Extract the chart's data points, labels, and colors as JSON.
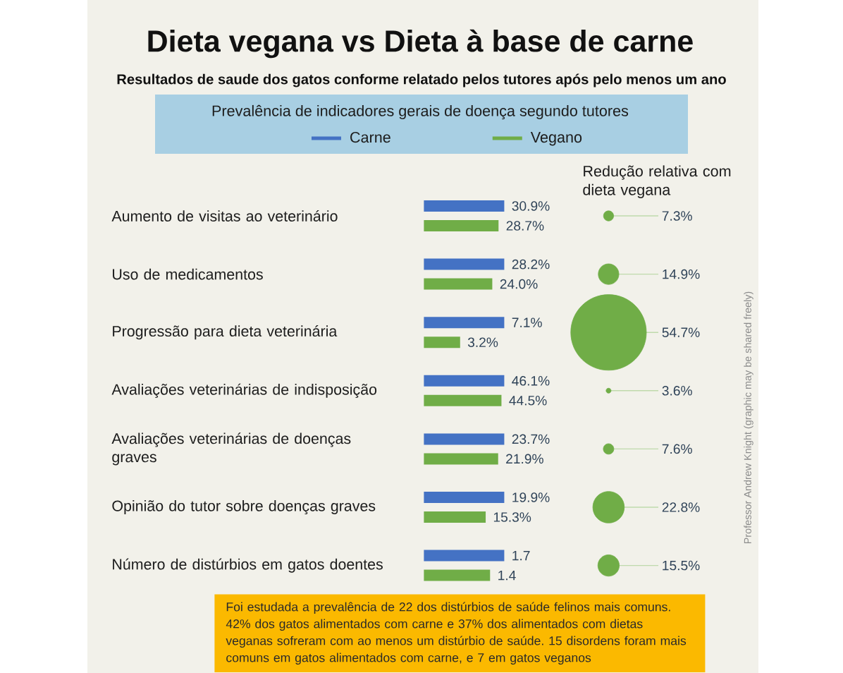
{
  "chart_data": [
    {
      "type": "bar",
      "orientation": "horizontal",
      "title": "Dieta vegana vs Dieta à base de carne",
      "subtitle": "Resultados de saude dos gatos conforme relatado pelos tutores após pelo menos um ano",
      "legend_title": "Prevalência de indicadores gerais de doença segundo tutores",
      "legend": "top",
      "categories": [
        "Aumento de visitas ao veterinário"
      ],
      "series": [
        {
          "name": "Carne",
          "color": "#4472c4",
          "values": [
            30.9
          ],
          "value_labels": [
            "30.9%"
          ]
        },
        {
          "name": "Vegano",
          "color": "#70ad47",
          "values": [
            28.7
          ],
          "value_labels": [
            "28.7%"
          ]
        }
      ]
    },
    {
      "type": "bar",
      "orientation": "horizontal",
      "categories": [
        "Uso de medicamentos"
      ],
      "series": [
        {
          "color": "#4472c4",
          "values": [
            28.2
          ],
          "value_labels": [
            "28.2%"
          ]
        },
        {
          "color": "#70ad47",
          "values": [
            24.0
          ],
          "value_labels": [
            "24.0%"
          ]
        }
      ]
    },
    {
      "type": "bar",
      "orientation": "horizontal",
      "categories": [
        "Progressão para dieta veterinária"
      ],
      "series": [
        {
          "color": "#4472c4",
          "values": [
            7.1
          ],
          "value_labels": [
            "7.1%"
          ]
        },
        {
          "color": "#70ad47",
          "values": [
            3.2
          ],
          "value_labels": [
            "3.2%"
          ]
        }
      ]
    },
    {
      "type": "bar",
      "orientation": "horizontal",
      "categories": [
        "Avaliações veterinárias de indisposição"
      ],
      "series": [
        {
          "color": "#4472c4",
          "values": [
            46.1
          ],
          "value_labels": [
            "46.1%"
          ]
        },
        {
          "color": "#70ad47",
          "values": [
            44.5
          ],
          "value_labels": [
            "44.5%"
          ]
        }
      ]
    },
    {
      "type": "bar",
      "orientation": "horizontal",
      "categories": [
        "Avaliações veterinárias de doenças graves"
      ],
      "series": [
        {
          "color": "#4472c4",
          "values": [
            23.7
          ],
          "value_labels": [
            "23.7%"
          ]
        },
        {
          "color": "#70ad47",
          "values": [
            21.9
          ],
          "value_labels": [
            "21.9%"
          ]
        }
      ]
    },
    {
      "type": "bar",
      "orientation": "horizontal",
      "categories": [
        "Opinião do tutor sobre doenças graves"
      ],
      "series": [
        {
          "color": "#4472c4",
          "values": [
            19.9
          ],
          "value_labels": [
            "19.9%"
          ]
        },
        {
          "color": "#70ad47",
          "values": [
            15.3
          ],
          "value_labels": [
            "15.3%"
          ]
        }
      ]
    },
    {
      "type": "bar",
      "orientation": "horizontal",
      "categories": [
        "Número de distúrbios em gatos doentes"
      ],
      "data_labels": true,
      "series": [
        {
          "color": "#4472c4",
          "values": [
            1.7
          ]
        },
        {
          "color": "#70ad47",
          "values": [
            1.4
          ]
        }
      ],
      "annotations": [
        "Foi estudada a prevalência de 22 dos distúrbios de saúde felinos mais comuns. 42% dos gatos alimentados com carne e 37% dos alimentados com dietas veganas sofreram com ao menos um distúrbio de saúde. 15 disordens foram mais comuns em gatos alimentados com carne, e 7 em gatos veganos",
        "Professor Andrew Knight (graphic may be shared freely)"
      ]
    },
    {
      "type": "other",
      "title": "Redução relativa com dieta vegana",
      "categories": [
        null,
        null,
        null,
        null,
        null,
        null,
        null
      ],
      "values": [
        7.3,
        14.9,
        54.7,
        3.6,
        7.6,
        22.8,
        15.5
      ],
      "value_labels": [
        "7.3%",
        "14.9%",
        "54.7%",
        "3.6%",
        "7.6%",
        "22.8%",
        "15.5%"
      ],
      "color": "#70ad47"
    }
  ]
}
